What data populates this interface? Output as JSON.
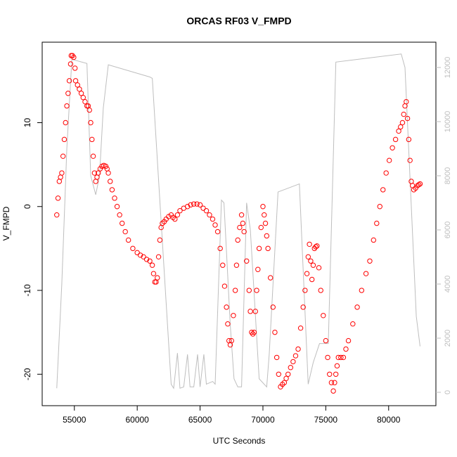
{
  "chart_data": {
    "type": "scatter",
    "title": "ORCAS RF03 V_FMPD",
    "x_label": "UTC Seconds",
    "y_label": "V_FMPD",
    "xlim": [
      52440,
      83760
    ],
    "xticks": [
      55000,
      60000,
      65000,
      70000,
      75000,
      80000
    ],
    "ylim": [
      -23.75,
      19.6
    ],
    "yticks": [
      -20,
      -10,
      0,
      10
    ],
    "y2lim": [
      -494,
      12935
    ],
    "y2ticks": [
      0,
      2000,
      4000,
      6000,
      8000,
      10000,
      12000
    ],
    "y2_color": "#bebebe",
    "series": [
      {
        "type": "scatter",
        "color": "#ff0000",
        "x": [
          53600,
          53700,
          53800,
          53900,
          54000,
          54100,
          54200,
          54300,
          54400,
          54500,
          54600,
          54700,
          54750,
          54850,
          54950,
          55050,
          55100,
          55250,
          55400,
          55550,
          55700,
          55850,
          56000,
          56100,
          56200,
          56300,
          56400,
          56500,
          56600,
          56700,
          56800,
          56900,
          57050,
          57200,
          57350,
          57500,
          57600,
          57700,
          57850,
          58000,
          58200,
          58400,
          58600,
          58800,
          59050,
          59300,
          59650,
          60000,
          60250,
          60500,
          60750,
          61000,
          61200,
          61300,
          61400,
          61500,
          61600,
          61700,
          61800,
          61900,
          62000,
          62150,
          62300,
          62500,
          62700,
          62850,
          63000,
          63200,
          63400,
          63700,
          64000,
          64250,
          64500,
          64750,
          65000,
          65250,
          65500,
          65750,
          66000,
          66200,
          66400,
          66600,
          66800,
          66950,
          67100,
          67200,
          67300,
          67400,
          67500,
          67650,
          67800,
          67900,
          68000,
          68150,
          68300,
          68400,
          68500,
          68700,
          68900,
          69000,
          69100,
          69200,
          69300,
          69400,
          69500,
          69600,
          69700,
          69850,
          70000,
          70100,
          70200,
          70300,
          70400,
          70600,
          70800,
          70950,
          71100,
          71250,
          71400,
          71550,
          71700,
          71850,
          72000,
          72200,
          72400,
          72600,
          72800,
          73000,
          73200,
          73350,
          73500,
          73600,
          73700,
          73800,
          73900,
          74000,
          74100,
          74200,
          74300,
          74450,
          74600,
          74800,
          75000,
          75150,
          75300,
          75450,
          75600,
          75700,
          75800,
          75900,
          76000,
          76200,
          76400,
          76600,
          76800,
          77150,
          77500,
          77850,
          78200,
          78500,
          78800,
          79050,
          79300,
          79550,
          79800,
          80050,
          80300,
          80550,
          80800,
          80950,
          81100,
          81200,
          81300,
          81400,
          81500,
          81600,
          81700,
          81800,
          81900,
          82000,
          82150,
          82300,
          82400,
          82500
        ],
        "values": [
          -1,
          1,
          3,
          3.5,
          4,
          6,
          8,
          10,
          12,
          13.5,
          15,
          17,
          18,
          18,
          17.8,
          16.5,
          15,
          14.5,
          14,
          13.5,
          13,
          12.5,
          12,
          12,
          11.5,
          10,
          8,
          6,
          4,
          3,
          3.5,
          4,
          4.5,
          4.8,
          4.9,
          4.8,
          4.5,
          4,
          3,
          2,
          1,
          0,
          -1,
          -2,
          -3,
          -4,
          -5,
          -5.5,
          -5.8,
          -6,
          -6.3,
          -6.5,
          -7,
          -8,
          -9,
          -9,
          -8.5,
          -6,
          -4,
          -2.5,
          -2,
          -1.8,
          -1.5,
          -1.2,
          -1,
          -1.3,
          -1.5,
          -1,
          -0.5,
          -0.2,
          0,
          0.2,
          0.3,
          0.3,
          0.2,
          -0.2,
          -0.5,
          -1,
          -1.5,
          -2.2,
          -3,
          -5,
          -7,
          -9.5,
          -12,
          -14,
          -16,
          -16.5,
          -16,
          -13,
          -10,
          -7,
          -4,
          -2.5,
          -1,
          -2,
          -3,
          -6.5,
          -10,
          -12.5,
          -15,
          -15.2,
          -15,
          -12.5,
          -10,
          -7.5,
          -5,
          -2.5,
          0,
          -1,
          -2,
          -3.5,
          -5,
          -8.5,
          -12,
          -15,
          -18,
          -20,
          -21.5,
          -21.2,
          -21,
          -20.5,
          -20,
          -19.2,
          -18.5,
          -17.8,
          -17,
          -14.5,
          -12,
          -10,
          -8,
          -6,
          -4.5,
          -6.5,
          -8.7,
          -7,
          -5,
          -4.8,
          -4.7,
          -7.3,
          -10,
          -13,
          -16,
          -18,
          -20,
          -21,
          -22,
          -21,
          -20,
          -19,
          -18,
          -18,
          -18,
          -17,
          -16,
          -14,
          -12,
          -10,
          -8,
          -6.5,
          -4,
          -2,
          0,
          2,
          4,
          5.5,
          7,
          8,
          9,
          9.5,
          10,
          11,
          12,
          12.5,
          10.5,
          8,
          5.5,
          3,
          2.5,
          2,
          2.2,
          2.5,
          2.6,
          2.7
        ]
      },
      {
        "type": "line",
        "axis": "y2",
        "color": "#bebebe",
        "x": [
          53600,
          54000,
          54400,
          54800,
          56000,
          56300,
          56700,
          57000,
          57300,
          57700,
          61000,
          61200,
          62700,
          62900,
          63200,
          63400,
          63700,
          64000,
          64200,
          64500,
          64800,
          65000,
          65300,
          65500,
          66000,
          66200,
          66700,
          66900,
          67400,
          67700,
          68000,
          68300,
          68700,
          69000,
          69700,
          70300,
          70500,
          71200,
          72900,
          73600,
          74000,
          74500,
          75200,
          75800,
          81000,
          81300,
          82200,
          82500
        ],
        "values": [
          150,
          4000,
          9000,
          12300,
          12150,
          8000,
          7300,
          8000,
          10500,
          12100,
          11650,
          11600,
          300,
          150,
          1450,
          150,
          200,
          1400,
          200,
          200,
          1400,
          200,
          1400,
          300,
          400,
          300,
          7100,
          7000,
          2500,
          500,
          200,
          200,
          7000,
          6000,
          500,
          200,
          1400,
          7400,
          7700,
          300,
          1100,
          1800,
          1800,
          12200,
          12500,
          12000,
          2800,
          1700
        ]
      }
    ]
  }
}
